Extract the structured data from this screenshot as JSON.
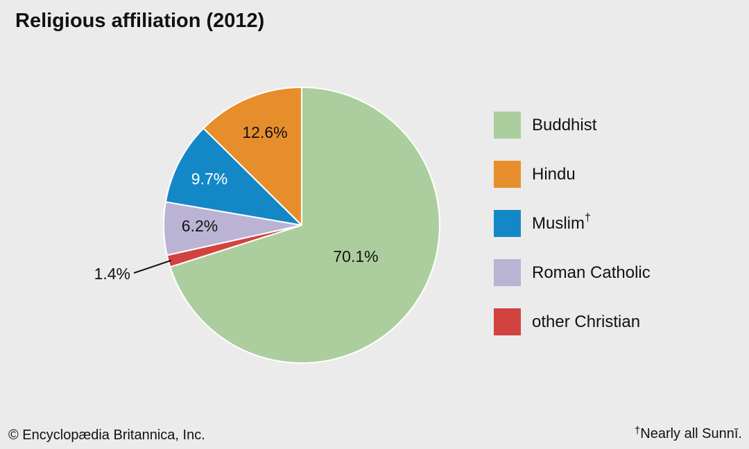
{
  "chart_data": {
    "type": "pie",
    "title": "Religious affiliation (2012)",
    "slices": [
      {
        "label": "Buddhist",
        "value": 70.1,
        "display": "70.1%",
        "color": "#acce9e",
        "text_color": "#111111"
      },
      {
        "label": "other Christian",
        "value": 1.4,
        "display": "1.4%",
        "color": "#d2423f",
        "text_color": "#111111"
      },
      {
        "label": "Roman Catholic",
        "value": 6.2,
        "display": "6.2%",
        "color": "#bab3d3",
        "text_color": "#111111"
      },
      {
        "label": "Muslim",
        "value": 9.7,
        "display": "9.7%",
        "color": "#1488c7",
        "text_color": "#ffffff"
      },
      {
        "label": "Hindu",
        "value": 12.6,
        "display": "12.6%",
        "color": "#e78e2c",
        "text_color": "#111111"
      }
    ],
    "legend": [
      {
        "label": "Buddhist",
        "marker": "",
        "color": "#acce9e"
      },
      {
        "label": "Hindu",
        "marker": "",
        "color": "#e78e2c"
      },
      {
        "label": "Muslim",
        "marker": "†",
        "color": "#1488c7"
      },
      {
        "label": "Roman Catholic",
        "marker": "",
        "color": "#bab3d3"
      },
      {
        "label": "other Christian",
        "marker": "",
        "color": "#d2423f"
      }
    ],
    "legend_position": "right"
  },
  "footer": {
    "credit": "© Encyclopædia Britannica, Inc.",
    "footnote_marker": "†",
    "footnote_text": "Nearly all Sunnī."
  }
}
